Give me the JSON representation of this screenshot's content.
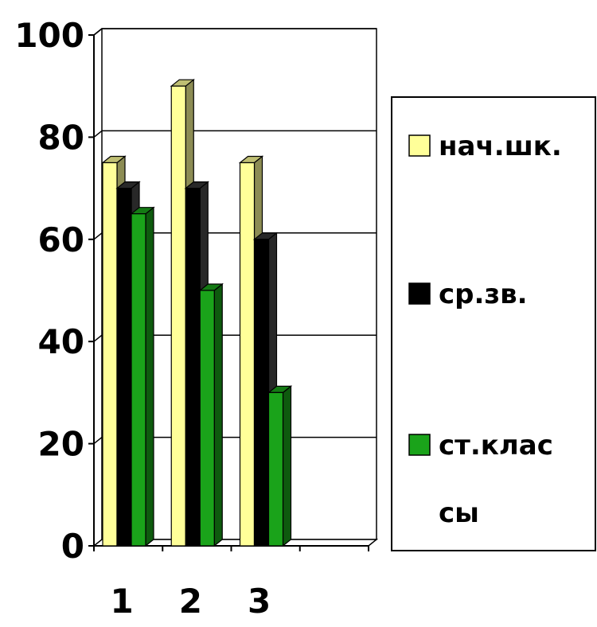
{
  "chart_data": {
    "type": "bar",
    "categories": [
      "1",
      "2",
      "3",
      ""
    ],
    "series": [
      {
        "name": "нач.шк.",
        "values": [
          75,
          90,
          75,
          null
        ],
        "color": "#ffff99"
      },
      {
        "name": "ср.зв.",
        "values": [
          70,
          70,
          60,
          null
        ],
        "color": "#000000"
      },
      {
        "name": "ст.клас сы",
        "name_lines": [
          "ст.клас",
          "сы"
        ],
        "values": [
          65,
          50,
          30,
          null
        ],
        "color": "#1aa31a"
      }
    ],
    "ylim": [
      0,
      100
    ],
    "yticks": [
      0,
      20,
      40,
      60,
      80,
      100
    ],
    "ytick_labels": [
      "0",
      "20",
      "40",
      "60",
      "80",
      "100"
    ],
    "title": "",
    "xlabel": "",
    "ylabel": "",
    "grid": true,
    "legend": "right",
    "style": "3d-bar"
  }
}
